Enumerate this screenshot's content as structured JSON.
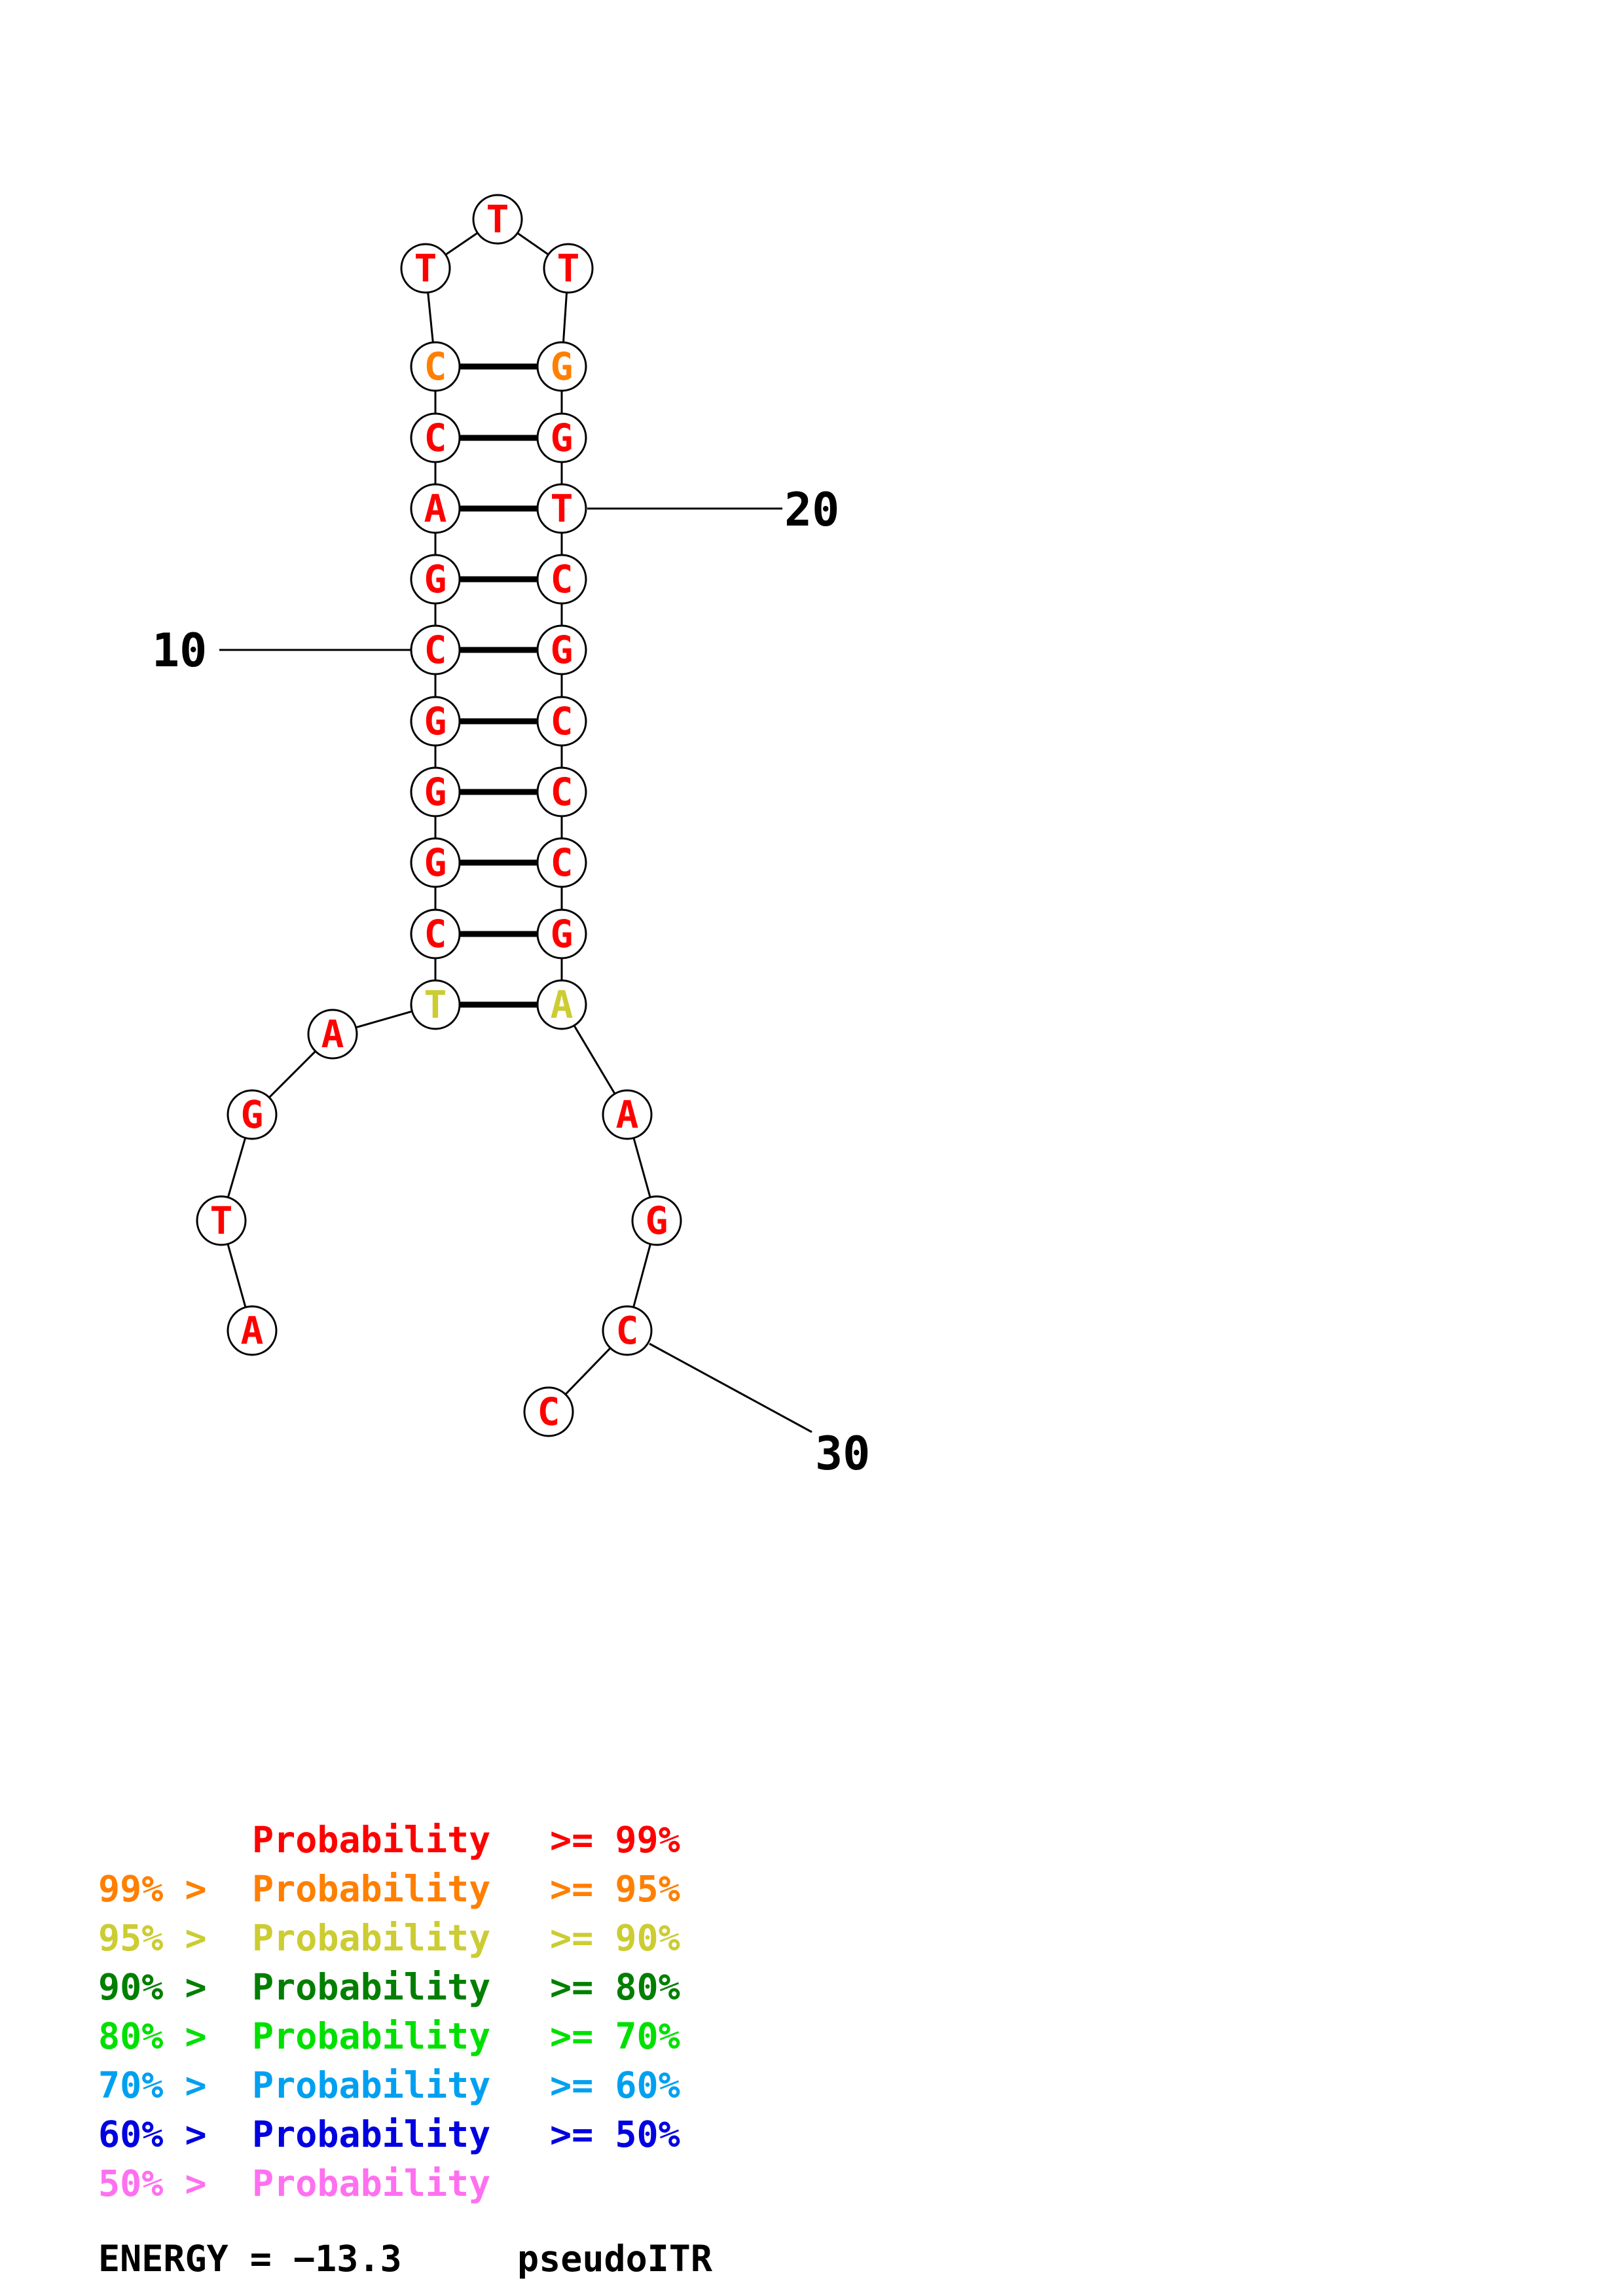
{
  "colors": {
    "p99": "#ff0000",
    "p95": "#ff7f00",
    "p90": "#cccc33",
    "p80": "#007f00",
    "p70": "#00e000",
    "p60": "#00a0f0",
    "p50": "#0000e0",
    "plow": "#ff70f0",
    "line": "#000000"
  },
  "structure": {
    "nucleotides": [
      {
        "index": 1,
        "base": "A",
        "prob": "p99"
      },
      {
        "index": 2,
        "base": "T",
        "prob": "p99"
      },
      {
        "index": 3,
        "base": "G",
        "prob": "p99"
      },
      {
        "index": 4,
        "base": "A",
        "prob": "p99"
      },
      {
        "index": 5,
        "base": "T",
        "prob": "p90"
      },
      {
        "index": 6,
        "base": "C",
        "prob": "p99"
      },
      {
        "index": 7,
        "base": "G",
        "prob": "p99"
      },
      {
        "index": 8,
        "base": "G",
        "prob": "p99"
      },
      {
        "index": 9,
        "base": "G",
        "prob": "p99"
      },
      {
        "index": 10,
        "base": "C",
        "prob": "p99"
      },
      {
        "index": 11,
        "base": "G",
        "prob": "p99"
      },
      {
        "index": 12,
        "base": "A",
        "prob": "p99"
      },
      {
        "index": 13,
        "base": "C",
        "prob": "p99"
      },
      {
        "index": 14,
        "base": "C",
        "prob": "p95"
      },
      {
        "index": 15,
        "base": "T",
        "prob": "p99"
      },
      {
        "index": 16,
        "base": "T",
        "prob": "p99"
      },
      {
        "index": 17,
        "base": "T",
        "prob": "p99"
      },
      {
        "index": 18,
        "base": "G",
        "prob": "p95"
      },
      {
        "index": 19,
        "base": "G",
        "prob": "p99"
      },
      {
        "index": 20,
        "base": "T",
        "prob": "p99"
      },
      {
        "index": 21,
        "base": "C",
        "prob": "p99"
      },
      {
        "index": 22,
        "base": "G",
        "prob": "p99"
      },
      {
        "index": 23,
        "base": "C",
        "prob": "p99"
      },
      {
        "index": 24,
        "base": "C",
        "prob": "p99"
      },
      {
        "index": 25,
        "base": "C",
        "prob": "p99"
      },
      {
        "index": 26,
        "base": "G",
        "prob": "p99"
      },
      {
        "index": 27,
        "base": "A",
        "prob": "p90"
      },
      {
        "index": 28,
        "base": "A",
        "prob": "p99"
      },
      {
        "index": 29,
        "base": "G",
        "prob": "p99"
      },
      {
        "index": 30,
        "base": "C",
        "prob": "p99"
      },
      {
        "index": 31,
        "base": "C",
        "prob": "p99"
      }
    ],
    "pairs": [
      [
        5,
        27
      ],
      [
        6,
        26
      ],
      [
        7,
        25
      ],
      [
        8,
        24
      ],
      [
        9,
        23
      ],
      [
        10,
        22
      ],
      [
        11,
        21
      ],
      [
        12,
        20
      ],
      [
        13,
        19
      ],
      [
        14,
        18
      ]
    ],
    "position_labels": [
      {
        "text": "10",
        "index": 10
      },
      {
        "text": "20",
        "index": 20
      },
      {
        "text": "30",
        "index": 30
      }
    ]
  },
  "legend": {
    "rows": [
      {
        "left": "",
        "mid": "Probability",
        "right": ">= 99%",
        "prob": "p99"
      },
      {
        "left": "99% >",
        "mid": "Probability",
        "right": ">= 95%",
        "prob": "p95"
      },
      {
        "left": "95% >",
        "mid": "Probability",
        "right": ">= 90%",
        "prob": "p90"
      },
      {
        "left": "90% >",
        "mid": "Probability",
        "right": ">= 80%",
        "prob": "p80"
      },
      {
        "left": "80% >",
        "mid": "Probability",
        "right": ">= 70%",
        "prob": "p70"
      },
      {
        "left": "70% >",
        "mid": "Probability",
        "right": ">= 60%",
        "prob": "p60"
      },
      {
        "left": "60% >",
        "mid": "Probability",
        "right": ">= 50%",
        "prob": "p50"
      },
      {
        "left": "50% >",
        "mid": "Probability",
        "right": "",
        "prob": "plow"
      }
    ]
  },
  "footer": {
    "energy": "ENERGY = −13.3",
    "name": "pseudoITR"
  }
}
